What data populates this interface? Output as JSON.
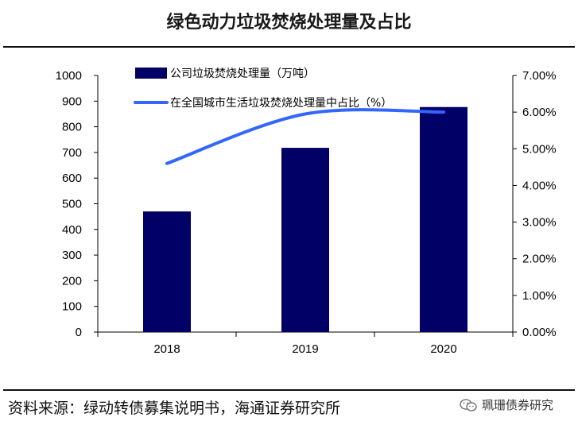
{
  "title": "绿色动力垃圾焚烧处理量及占比",
  "source": "资料来源：绿动转债募集说明书，海通证券研究所",
  "watermark": "珮珊债券研究",
  "colors": {
    "bar": "#000066",
    "line": "#3366ff",
    "axis": "#000000"
  },
  "chart_data": {
    "type": "bar",
    "categories": [
      "2018",
      "2019",
      "2020"
    ],
    "series": [
      {
        "name": "公司垃圾焚烧处理量（万吨）",
        "type": "bar",
        "axis": "left",
        "values": [
          470,
          718,
          877
        ]
      },
      {
        "name": "在全国城市生活垃圾焚烧处理量中占比（%）",
        "type": "line",
        "axis": "right",
        "values": [
          4.6,
          5.95,
          6.0
        ]
      }
    ],
    "ylim": [
      0,
      1000
    ],
    "yticks": [
      "0",
      "100",
      "200",
      "300",
      "400",
      "500",
      "600",
      "700",
      "800",
      "900",
      "1000"
    ],
    "y2lim": [
      0,
      7
    ],
    "y2ticks": [
      "0.00%",
      "1.00%",
      "2.00%",
      "3.00%",
      "4.00%",
      "5.00%",
      "6.00%",
      "7.00%"
    ],
    "legend_position": "top",
    "grid": false
  }
}
